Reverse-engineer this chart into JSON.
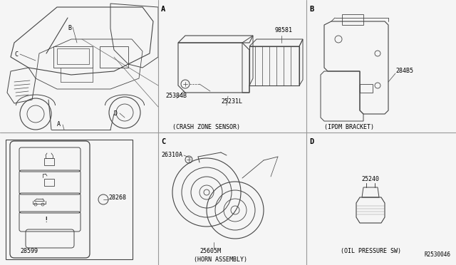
{
  "bg_color": "#f5f5f5",
  "line_color": "#444444",
  "text_color": "#000000",
  "grid_color": "#999999",
  "fig_width": 6.4,
  "fig_height": 3.72,
  "dpi": 100,
  "labels": {
    "crash_zone": "(CRASH ZONE SENSOR)",
    "ipdm_bracket": "(IPDM BRACKET)",
    "horn_assembly": "(HORN ASSEMBLY)",
    "oil_pressure": "(OIL PRESSURE SW)",
    "part_98581": "98581",
    "part_25384B": "25384B",
    "part_25231L": "25231L",
    "part_284B5": "284B5",
    "part_26310A": "26310A",
    "part_25605M": "25605M",
    "part_25240": "25240",
    "part_28268": "28268",
    "part_28599": "28599",
    "ref_code": "R2530046"
  },
  "font_size_part": 6.0,
  "font_size_section": 7.5,
  "font_size_caption": 6.0,
  "font_size_refcode": 5.5
}
